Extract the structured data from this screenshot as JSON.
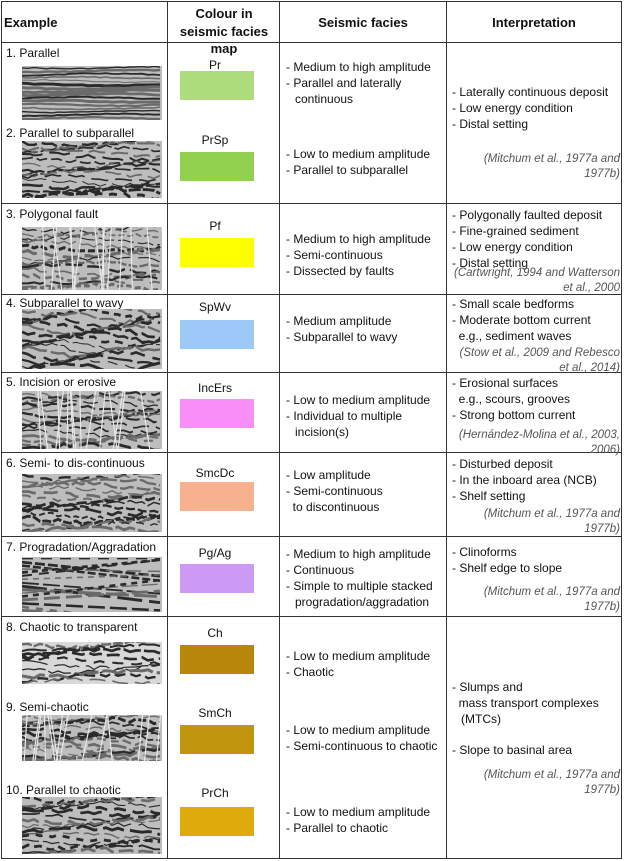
{
  "headers": {
    "example": "Example",
    "colour": "Colour in seismic facies map",
    "facies": "Seismic facies",
    "interpretation": "Interpretation"
  },
  "rows": [
    {
      "title": "1. Parallel",
      "code": "Pr",
      "color": "#aedd7e",
      "facies": [
        "- Medium to high amplitude",
        "- Parallel and laterally continuous"
      ]
    },
    {
      "title": "2. Parallel to subparallel",
      "code": "PrSp",
      "color": "#92d050",
      "facies": [
        "- Low to medium amplitude",
        "- Parallel to subparallel"
      ]
    },
    {
      "title": "3. Polygonal fault",
      "code": "Pf",
      "color": "#ffff00",
      "facies": [
        "- Medium to high amplitude",
        "- Semi-continuous",
        "- Dissected by faults"
      ]
    },
    {
      "title": "4. Subparallel to wavy",
      "code": "SpWv",
      "color": "#9dc9f8",
      "facies": [
        "- Medium amplitude",
        "- Subparallel to wavy"
      ]
    },
    {
      "title": "5. Incision or erosive",
      "code": "IncErs",
      "color": "#f98ef9",
      "facies": [
        "- Low to medium amplitude",
        "- Individual to multiple incision(s)"
      ]
    },
    {
      "title": "6. Semi- to dis-continuous",
      "code": "SmcDc",
      "color": "#f7b18f",
      "facies": [
        "- Low amplitude",
        "- Semi-continuous",
        "  to discontinuous"
      ]
    },
    {
      "title": "7. Progradation/Aggradation",
      "code": "Pg/Ag",
      "color": "#cc99f5",
      "facies": [
        "- Medium to high amplitude",
        "- Continuous",
        "- Simple to multiple stacked progradation/aggradation"
      ]
    },
    {
      "title": "8. Chaotic to transparent",
      "code": "Ch",
      "color": "#b8860b",
      "facies": [
        "- Low to medium amplitude",
        "- Chaotic"
      ]
    },
    {
      "title": "9. Semi-chaotic",
      "code": "SmCh",
      "color": "#c2950e",
      "facies": [
        "- Low to medium amplitude",
        "- Semi-continuous to chaotic"
      ]
    },
    {
      "title": "10. Parallel to chaotic",
      "code": "PrCh",
      "color": "#deaa0c",
      "facies": [
        "- Low to medium amplitude",
        "- Parallel to chaotic"
      ]
    }
  ],
  "interpretations": [
    {
      "items": [
        "- Laterally continuous deposit",
        "- Low energy condition",
        "- Distal setting"
      ],
      "citation": "(Mitchum et al., 1977a and 1977b)"
    },
    {
      "items": [
        "- Polygonally faulted deposit",
        "- Fine-grained sediment",
        "- Low energy condition",
        "- Distal setting"
      ],
      "citation": "(Cartwright, 1994 and Watterson et al., 2000"
    },
    {
      "items": [
        "- Small scale bedforms",
        "- Moderate bottom current",
        "  e.g., sediment waves"
      ],
      "citation": "(Stow et al., 2009 and Rebesco et al., 2014)"
    },
    {
      "items": [
        "- Erosional surfaces",
        "  e.g., scours, grooves",
        "- Strong bottom current"
      ],
      "citation": "(Hernández-Molina et al., 2003, 2006)"
    },
    {
      "items": [
        "- Disturbed deposit",
        "- In the inboard area (NCB)",
        "- Shelf setting"
      ],
      "citation": "(Mitchum et al., 1977a and 1977b)"
    },
    {
      "items": [
        "- Clinoforms",
        "- Shelf edge to slope"
      ],
      "citation": "(Mitchum et al., 1977a and 1977b)"
    },
    {
      "items": [
        "- Slumps and",
        "  mass transport complexes (MTCs)",
        "",
        "- Slope to basinal area"
      ],
      "citation": "(Mitchum et al., 1977a and 1977b)"
    }
  ]
}
